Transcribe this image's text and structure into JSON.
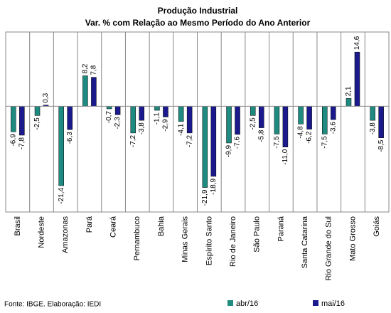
{
  "chart_data": {
    "type": "bar",
    "title": "Produção Industrial",
    "subtitle": "Var. % com Relação ao Mesmo Período do Ano Anterior",
    "categories": [
      "Brasil",
      "Nordeste",
      "Amazonas",
      "Pará",
      "Ceará",
      "Pernambuco",
      "Bahia",
      "Minas Gerais",
      "Espírito Santo",
      "Rio de Janeiro",
      "São Paulo",
      "Paraná",
      "Santa Catarina",
      "Rio Grande do Sul",
      "Mato Grosso",
      "Goiás"
    ],
    "series": [
      {
        "name": "abr/16",
        "color": "#1f8a80",
        "values": [
          -6.9,
          -2.5,
          -21.4,
          8.2,
          -0.7,
          -7.2,
          -1.1,
          -4.1,
          -21.9,
          -9.9,
          -2.5,
          -7.5,
          -4.8,
          -7.5,
          2.1,
          -3.8
        ],
        "value_labels": [
          "-6,9",
          "-2,5",
          "-21,4",
          "8,2",
          "-0,7",
          "-7,2",
          "-1,1",
          "-4,1",
          "-21,9",
          "-9,9",
          "-2,5",
          "-7,5",
          "-4,8",
          "-7,5",
          "2,1",
          "-3,8"
        ]
      },
      {
        "name": "mai/16",
        "color": "#1a1a8c",
        "values": [
          -7.8,
          0.3,
          -6.3,
          7.8,
          -2.3,
          -3.8,
          -2.9,
          -7.2,
          -18.9,
          -7.6,
          -5.8,
          -11.0,
          -6.2,
          -3.6,
          14.6,
          -8.5
        ],
        "value_labels": [
          "-7,8",
          "0,3",
          "-6,3",
          "7,8",
          "-2,3",
          "-3,8",
          "-2,9",
          "-7,2",
          "-18,9",
          "-7,6",
          "-5,8",
          "-11,0",
          "-6,2",
          "-3,6",
          "14,6",
          "-8,5"
        ]
      }
    ],
    "ylim": [
      -28.5,
      20
    ],
    "source": "Fonte: IBGE. Elaboração: IEDI"
  }
}
